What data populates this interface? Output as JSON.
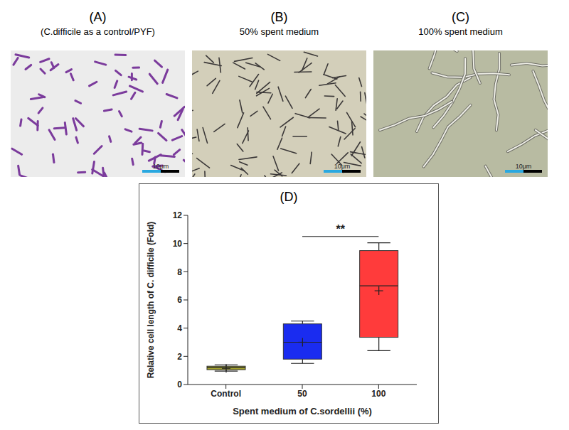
{
  "panels": [
    {
      "label": "(A)",
      "caption": "(C.difficile as a control/PYF)",
      "scale_bar": "10μm"
    },
    {
      "label": "(B)",
      "caption": "50% spent medium",
      "scale_bar": "10μm"
    },
    {
      "label": "(C)",
      "caption": "100% spent medium",
      "scale_bar": "10μm"
    }
  ],
  "chart_data": {
    "type": "box",
    "title": "(D)",
    "categories": [
      "Control",
      "50",
      "100"
    ],
    "colors": [
      "#a3a22e",
      "#1a2cf0",
      "#ff3b3b"
    ],
    "boxes": [
      {
        "min": 0.95,
        "q1": 1.05,
        "median": 1.2,
        "q3": 1.3,
        "max": 1.4,
        "mean": 1.15
      },
      {
        "min": 1.5,
        "q1": 1.8,
        "median": 3.0,
        "q3": 4.3,
        "max": 4.5,
        "mean": 3.0
      },
      {
        "min": 2.4,
        "q1": 3.35,
        "median": 7.0,
        "q3": 9.5,
        "max": 10.05,
        "mean": 6.65
      }
    ],
    "x_label": "Spent medium of C.sordellii (%)",
    "y_label": "Relative cell length of C. difficile (Fold)",
    "ylim": [
      0,
      12
    ],
    "yticks": [
      0,
      2,
      4,
      6,
      8,
      10,
      12
    ],
    "annotations": [
      {
        "text": "**",
        "from": "50",
        "to": "100"
      }
    ]
  }
}
